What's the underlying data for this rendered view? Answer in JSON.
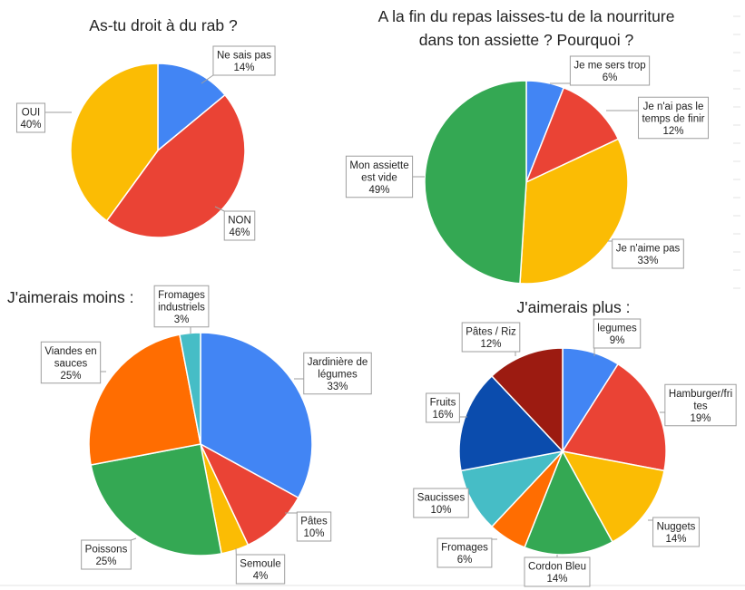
{
  "chart_data": [
    {
      "type": "pie",
      "title": "As-tu droit à du rab ?",
      "slices": [
        {
          "label": [
            "Ne sais pas"
          ],
          "value": 14,
          "percent_label": "14%",
          "color": "#4285F4"
        },
        {
          "label": [
            "NON"
          ],
          "value": 46,
          "percent_label": "46%",
          "color": "#EA4335"
        },
        {
          "label": [
            "OUI"
          ],
          "value": 40,
          "percent_label": "40%",
          "color": "#FBBC04"
        }
      ]
    },
    {
      "type": "pie",
      "title": [
        "A la fin du repas laisses-tu de la nourriture",
        "dans ton assiette ? Pourquoi ?"
      ],
      "slices": [
        {
          "label": [
            "Je me sers trop"
          ],
          "value": 6,
          "percent_label": "6%",
          "color": "#4285F4"
        },
        {
          "label": [
            "Je n'ai pas le",
            "temps de finir"
          ],
          "value": 12,
          "percent_label": "12%",
          "color": "#EA4335"
        },
        {
          "label": [
            "Je n'aime pas"
          ],
          "value": 33,
          "percent_label": "33%",
          "color": "#FBBC04"
        },
        {
          "label": [
            "Mon assiette",
            "est vide"
          ],
          "value": 49,
          "percent_label": "49%",
          "color": "#34A853"
        }
      ]
    },
    {
      "type": "pie",
      "title": "J'aimerais moins :",
      "slices": [
        {
          "label": [
            "Jardinière de",
            "légumes"
          ],
          "value": 33,
          "percent_label": "33%",
          "color": "#4285F4"
        },
        {
          "label": [
            "Pâtes"
          ],
          "value": 10,
          "percent_label": "10%",
          "color": "#EA4335"
        },
        {
          "label": [
            "Semoule"
          ],
          "value": 4,
          "percent_label": "4%",
          "color": "#FBBC04"
        },
        {
          "label": [
            "Poissons"
          ],
          "value": 25,
          "percent_label": "25%",
          "color": "#34A853"
        },
        {
          "label": [
            "Viandes en",
            "sauces"
          ],
          "value": 25,
          "percent_label": "25%",
          "color": "#FF6D01"
        },
        {
          "label": [
            "Fromages",
            "industriels"
          ],
          "value": 3,
          "percent_label": "3%",
          "color": "#46BDC6"
        }
      ]
    },
    {
      "type": "pie",
      "title": "J'aimerais plus :",
      "slices": [
        {
          "label": [
            "legumes"
          ],
          "value": 9,
          "percent_label": "9%",
          "color": "#4285F4"
        },
        {
          "label": [
            "Hamburger/fri",
            "tes"
          ],
          "value": 19,
          "percent_label": "19%",
          "color": "#EA4335"
        },
        {
          "label": [
            "Nuggets"
          ],
          "value": 14,
          "percent_label": "14%",
          "color": "#FBBC04"
        },
        {
          "label": [
            "Cordon Bleu"
          ],
          "value": 14,
          "percent_label": "14%",
          "color": "#34A853"
        },
        {
          "label": [
            "Fromages"
          ],
          "value": 6,
          "percent_label": "6%",
          "color": "#FF6D01"
        },
        {
          "label": [
            "Saucisses"
          ],
          "value": 10,
          "percent_label": "10%",
          "color": "#46BDC6"
        },
        {
          "label": [
            "Fruits"
          ],
          "value": 16,
          "percent_label": "16%",
          "color": "#0B4CAD"
        },
        {
          "label": [
            "Pâtes / Riz"
          ],
          "value": 12,
          "percent_label": "12%",
          "color": "#9C1B11"
        }
      ]
    }
  ]
}
